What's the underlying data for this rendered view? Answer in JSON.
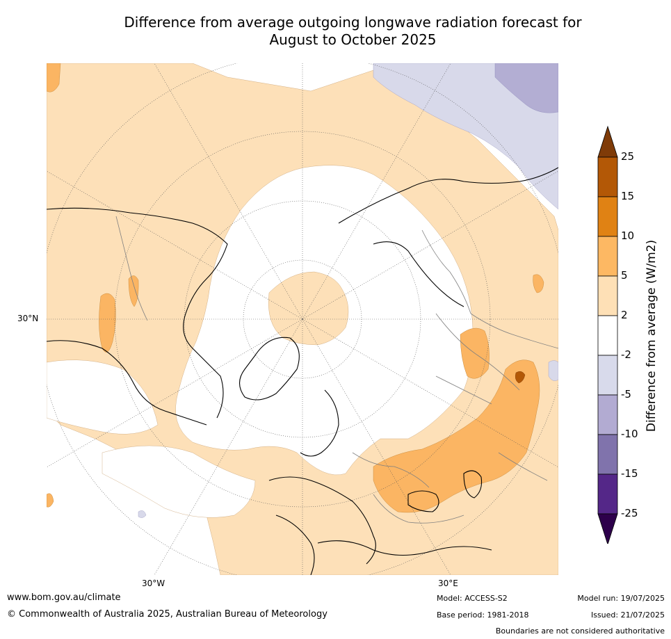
{
  "title_line1": "Difference from average outgoing longwave radiation forecast for",
  "title_line2": "August to October 2025",
  "map": {
    "projection": "north polar stereographic",
    "latitude_labels": [
      "30°N"
    ],
    "longitude_labels": [
      "30°W",
      "30°E"
    ],
    "colors": {
      "ocean_land_background": "#ffffff",
      "light_orange": "#fde0b8",
      "mid_orange": "#fbb563",
      "light_purple": "#d8d9ea",
      "mid_purple": "#b3aed3",
      "dark_orange": "#b35806",
      "coastline": "#000000",
      "border": "#808080",
      "grid": "#666666"
    }
  },
  "colorbar": {
    "label": "Difference from average (W/m2)",
    "ticks": [
      "25",
      "15",
      "10",
      "5",
      "2",
      "-2",
      "-5",
      "-10",
      "-15",
      "-25"
    ],
    "bins": [
      {
        "range": "> 25",
        "color": "#7f3b08"
      },
      {
        "range": "15 to 25",
        "color": "#b35806"
      },
      {
        "range": "10 to 15",
        "color": "#e08214"
      },
      {
        "range": "5 to 10",
        "color": "#fdb863"
      },
      {
        "range": "2 to 5",
        "color": "#fee0b6"
      },
      {
        "range": "-2 to 2",
        "color": "#ffffff"
      },
      {
        "range": "-5 to -2",
        "color": "#d8daeb"
      },
      {
        "range": "-10 to -5",
        "color": "#b2abd2"
      },
      {
        "range": "-15 to -10",
        "color": "#8073ac"
      },
      {
        "range": "-25 to -15",
        "color": "#542788"
      },
      {
        "range": "< -25",
        "color": "#2d004b"
      }
    ]
  },
  "footer": {
    "website": "www.bom.gov.au/climate",
    "copyright": "© Commonwealth of Australia 2025, Australian Bureau of Meteorology",
    "model": "Model: ACCESS-S2",
    "base_period": "Base period: 1981-2018",
    "model_run": "Model run: 19/07/2025",
    "issued": "Issued: 21/07/2025",
    "disclaimer": "Boundaries are not considered authoritative"
  }
}
